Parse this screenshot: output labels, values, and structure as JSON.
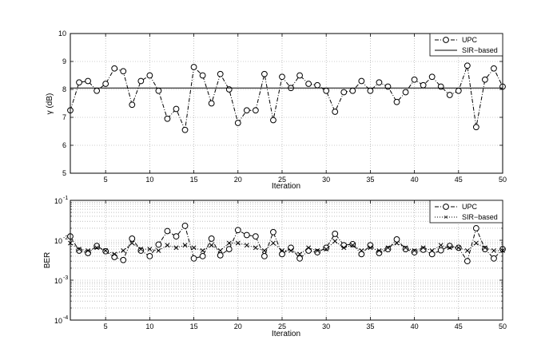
{
  "chart_data": [
    {
      "type": "line",
      "xlabel": "Iteration",
      "ylabel": "γ (dB)",
      "xlim": [
        1,
        50
      ],
      "ylim": [
        5,
        10
      ],
      "xticks": [
        5,
        10,
        15,
        20,
        25,
        30,
        35,
        40,
        45,
        50
      ],
      "yticks": [
        5,
        6,
        7,
        8,
        9,
        10
      ],
      "ytick_labels": [
        "5",
        "6",
        "7",
        "8",
        "9",
        "10"
      ],
      "yscale": "linear",
      "grid": true,
      "legend_position": "top-right",
      "x": [
        1,
        2,
        3,
        4,
        5,
        6,
        7,
        8,
        9,
        10,
        11,
        12,
        13,
        14,
        15,
        16,
        17,
        18,
        19,
        20,
        21,
        22,
        23,
        24,
        25,
        26,
        27,
        28,
        29,
        30,
        31,
        32,
        33,
        34,
        35,
        36,
        37,
        38,
        39,
        40,
        41,
        42,
        43,
        44,
        45,
        46,
        47,
        48,
        49,
        50
      ],
      "series": [
        {
          "name": "UPC",
          "style": "dash-dot with circle markers",
          "values": [
            7.25,
            8.25,
            8.3,
            7.95,
            8.2,
            8.75,
            8.65,
            7.45,
            8.3,
            8.5,
            7.95,
            6.95,
            7.3,
            6.55,
            8.8,
            8.5,
            7.5,
            8.55,
            8.0,
            6.8,
            7.25,
            7.25,
            8.55,
            6.9,
            8.45,
            8.05,
            8.5,
            8.2,
            8.15,
            7.95,
            7.2,
            7.9,
            7.95,
            8.3,
            7.95,
            8.25,
            8.1,
            7.55,
            7.9,
            8.35,
            8.15,
            8.45,
            8.1,
            7.8,
            7.95,
            8.85,
            6.65,
            8.35,
            8.75,
            8.1
          ]
        },
        {
          "name": "SIR−based",
          "style": "solid",
          "values": [
            8.05,
            8.05,
            8.05,
            8.05,
            8.05,
            8.05,
            8.05,
            8.05,
            8.05,
            8.05,
            8.05,
            8.05,
            8.05,
            8.05,
            8.05,
            8.05,
            8.05,
            8.05,
            8.05,
            8.05,
            8.05,
            8.05,
            8.05,
            8.05,
            8.05,
            8.05,
            8.05,
            8.05,
            8.05,
            8.05,
            8.05,
            8.05,
            8.05,
            8.05,
            8.05,
            8.05,
            8.05,
            8.05,
            8.05,
            8.05,
            8.05,
            8.05,
            8.05,
            8.05,
            8.05,
            8.05,
            8.05,
            8.05,
            8.05,
            8.05
          ]
        }
      ]
    },
    {
      "type": "line",
      "xlabel": "Iteration",
      "ylabel": "BER",
      "xlim": [
        1,
        50
      ],
      "ylim": [
        0.0001,
        0.1
      ],
      "xticks": [
        5,
        10,
        15,
        20,
        25,
        30,
        35,
        40,
        45,
        50
      ],
      "yticks": [
        -4,
        -3,
        -2,
        -1
      ],
      "ytick_labels": [
        "10",
        "10",
        "10",
        "10"
      ],
      "ytick_exponents": [
        "-4",
        "-3",
        "-2",
        "-1"
      ],
      "yscale": "log",
      "grid": true,
      "legend_position": "top-right",
      "x": [
        1,
        2,
        3,
        4,
        5,
        6,
        7,
        8,
        9,
        10,
        11,
        12,
        13,
        14,
        15,
        16,
        17,
        18,
        19,
        20,
        21,
        22,
        23,
        24,
        25,
        26,
        27,
        28,
        29,
        30,
        31,
        32,
        33,
        34,
        35,
        36,
        37,
        38,
        39,
        40,
        41,
        42,
        43,
        44,
        45,
        46,
        47,
        48,
        49,
        50
      ],
      "series": [
        {
          "name": "UPC",
          "style": "dash-dot with circle markers",
          "values": [
            0.0125,
            0.0055,
            0.0048,
            0.0072,
            0.0053,
            0.0038,
            0.0032,
            0.011,
            0.0055,
            0.004,
            0.0078,
            0.017,
            0.0125,
            0.023,
            0.0035,
            0.004,
            0.011,
            0.0042,
            0.006,
            0.018,
            0.0135,
            0.0125,
            0.004,
            0.016,
            0.0045,
            0.0065,
            0.0035,
            0.0055,
            0.005,
            0.0065,
            0.0145,
            0.0075,
            0.008,
            0.0045,
            0.0075,
            0.0048,
            0.006,
            0.0105,
            0.006,
            0.005,
            0.0058,
            0.0045,
            0.0056,
            0.0072,
            0.0065,
            0.003,
            0.02,
            0.006,
            0.0035,
            0.006
          ]
        },
        {
          "name": "SIR−based",
          "style": "dotted with x markers",
          "values": [
            0.0085,
            0.006,
            0.0055,
            0.0065,
            0.0055,
            0.0045,
            0.0055,
            0.0085,
            0.006,
            0.006,
            0.0055,
            0.0075,
            0.0065,
            0.0075,
            0.0065,
            0.0055,
            0.0075,
            0.0055,
            0.0085,
            0.0085,
            0.0075,
            0.0065,
            0.0055,
            0.0085,
            0.0055,
            0.0055,
            0.0045,
            0.0065,
            0.0055,
            0.006,
            0.0095,
            0.0065,
            0.0075,
            0.0055,
            0.0065,
            0.0055,
            0.0065,
            0.0085,
            0.0065,
            0.0055,
            0.0065,
            0.0055,
            0.0075,
            0.0065,
            0.0065,
            0.0055,
            0.0085,
            0.0065,
            0.0055,
            0.0055
          ]
        }
      ]
    }
  ]
}
